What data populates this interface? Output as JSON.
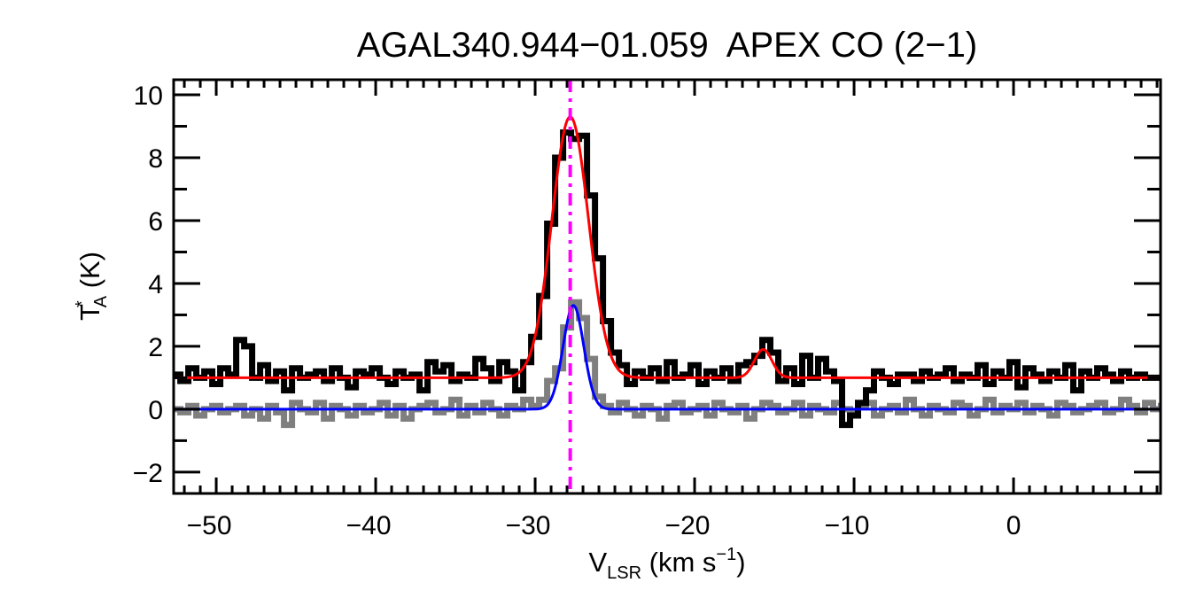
{
  "chart_data": {
    "type": "line",
    "title": "AGAL340.944−01.059  APEX CO (2−1)",
    "xlabel": {
      "main": "V",
      "sub": "LSR",
      "rest": " (km s",
      "sup": "−1",
      "end": ")"
    },
    "ylabel": {
      "main": "T",
      "sup": "*",
      "sub": "A",
      "rest": " (K)"
    },
    "xlim": [
      -52.67,
      9.22
    ],
    "ylim": [
      -2.68,
      10.48
    ],
    "x_major_ticks": [
      -50,
      -40,
      -30,
      -20,
      -10,
      0
    ],
    "x_tick_labels": [
      "−50",
      "−40",
      "−30",
      "−20",
      "−10",
      "0"
    ],
    "x_minor_step": 1,
    "y_major_ticks": [
      -2,
      0,
      2,
      4,
      6,
      8,
      10
    ],
    "y_tick_labels": [
      "−2",
      "0",
      "2",
      "4",
      "6",
      "8",
      "10"
    ],
    "y_minor_step": 1,
    "grid": false,
    "vline": {
      "x": -27.8,
      "color": "#ff00ff",
      "style": "dash-dot"
    },
    "series": [
      {
        "kind": "histogram",
        "color": "#000000",
        "x_start": -52.5,
        "x_step": 0.5,
        "values": [
          1.1,
          0.9,
          1.3,
          1.0,
          1.2,
          0.8,
          1.3,
          1.1,
          2.2,
          2.0,
          1.0,
          1.4,
          0.9,
          1.2,
          0.6,
          1.3,
          1.0,
          1.1,
          1.2,
          0.9,
          1.3,
          1.0,
          0.7,
          1.2,
          1.1,
          1.3,
          1.0,
          0.8,
          1.2,
          1.0,
          1.1,
          0.6,
          1.5,
          1.2,
          1.4,
          0.9,
          1.1,
          1.0,
          1.6,
          1.3,
          0.9,
          1.5,
          1.2,
          0.6,
          1.5,
          2.3,
          3.6,
          5.9,
          8.0,
          8.8,
          8.6,
          8.7,
          6.8,
          4.8,
          2.8,
          1.8,
          1.4,
          0.8,
          1.2,
          1.0,
          1.3,
          0.9,
          1.5,
          1.0,
          1.1,
          1.4,
          0.8,
          1.2,
          1.0,
          1.3,
          0.9,
          1.4,
          1.5,
          1.7,
          2.2,
          1.8,
          0.9,
          1.3,
          0.8,
          1.7,
          1.0,
          1.6,
          1.2,
          0.9,
          -0.5,
          -0.2,
          0.2,
          0.6,
          1.2,
          1.0,
          0.8,
          1.1,
          1.1,
          0.9,
          1.2,
          1.0,
          1.1,
          1.3,
          0.9,
          1.1,
          1.0,
          1.4,
          0.8,
          1.2,
          1.0,
          1.5,
          0.7,
          1.3,
          1.1,
          0.9,
          1.2,
          1.0,
          1.4,
          0.6,
          1.2,
          1.0,
          1.3,
          1.1,
          0.9,
          1.2,
          1.0,
          1.1,
          1.0,
          1.0
        ]
      },
      {
        "kind": "histogram",
        "color": "#7f7f7f",
        "x_start": -52.5,
        "x_step": 0.5,
        "values": [
          0.0,
          -0.1,
          0.1,
          -0.2,
          0.0,
          0.1,
          -0.1,
          0.0,
          0.1,
          -0.2,
          0.0,
          -0.3,
          0.1,
          -0.1,
          -0.5,
          0.2,
          0.0,
          -0.1,
          0.2,
          -0.3,
          0.1,
          0.0,
          -0.2,
          0.1,
          -0.1,
          0.0,
          0.2,
          -0.2,
          0.1,
          -0.3,
          0.0,
          0.1,
          0.2,
          -0.1,
          0.0,
          0.3,
          -0.2,
          0.1,
          -0.1,
          0.2,
          0.0,
          -0.2,
          0.1,
          0.0,
          0.3,
          0.1,
          0.3,
          0.9,
          1.3,
          2.6,
          3.4,
          2.9,
          1.6,
          0.4,
          0.1,
          -0.1,
          0.2,
          0.0,
          -0.2,
          0.1,
          0.0,
          -0.3,
          0.1,
          0.2,
          -0.1,
          0.0,
          0.1,
          -0.2,
          0.2,
          0.0,
          -0.1,
          0.1,
          -0.3,
          0.0,
          0.2,
          0.1,
          -0.1,
          0.0,
          0.2,
          -0.2,
          0.1,
          0.0,
          -0.1,
          0.2,
          0.0,
          -0.1,
          0.1,
          0.2,
          -0.2,
          0.0,
          0.1,
          -0.1,
          0.3,
          0.0,
          -0.2,
          0.1,
          0.0,
          -0.1,
          0.2,
          0.1,
          -0.2,
          0.0,
          0.3,
          -0.1,
          0.1,
          0.0,
          0.2,
          -0.1,
          0.1,
          0.0,
          -0.2,
          0.2,
          0.1,
          -0.1,
          0.0,
          0.1,
          0.2,
          -0.1,
          0.0,
          0.3,
          0.1,
          -0.1,
          0.2,
          0.0,
          0.1
        ]
      },
      {
        "kind": "gaussian-fit",
        "color": "#ff0000",
        "baseline": 1.0,
        "components": [
          {
            "amp": 8.3,
            "center": -27.8,
            "sigma": 1.15
          },
          {
            "amp": 0.9,
            "center": -15.7,
            "sigma": 0.55
          }
        ]
      },
      {
        "kind": "gaussian-fit",
        "color": "#0000ff",
        "baseline": 0.0,
        "components": [
          {
            "amp": 3.3,
            "center": -27.6,
            "sigma": 0.65
          }
        ]
      }
    ]
  }
}
